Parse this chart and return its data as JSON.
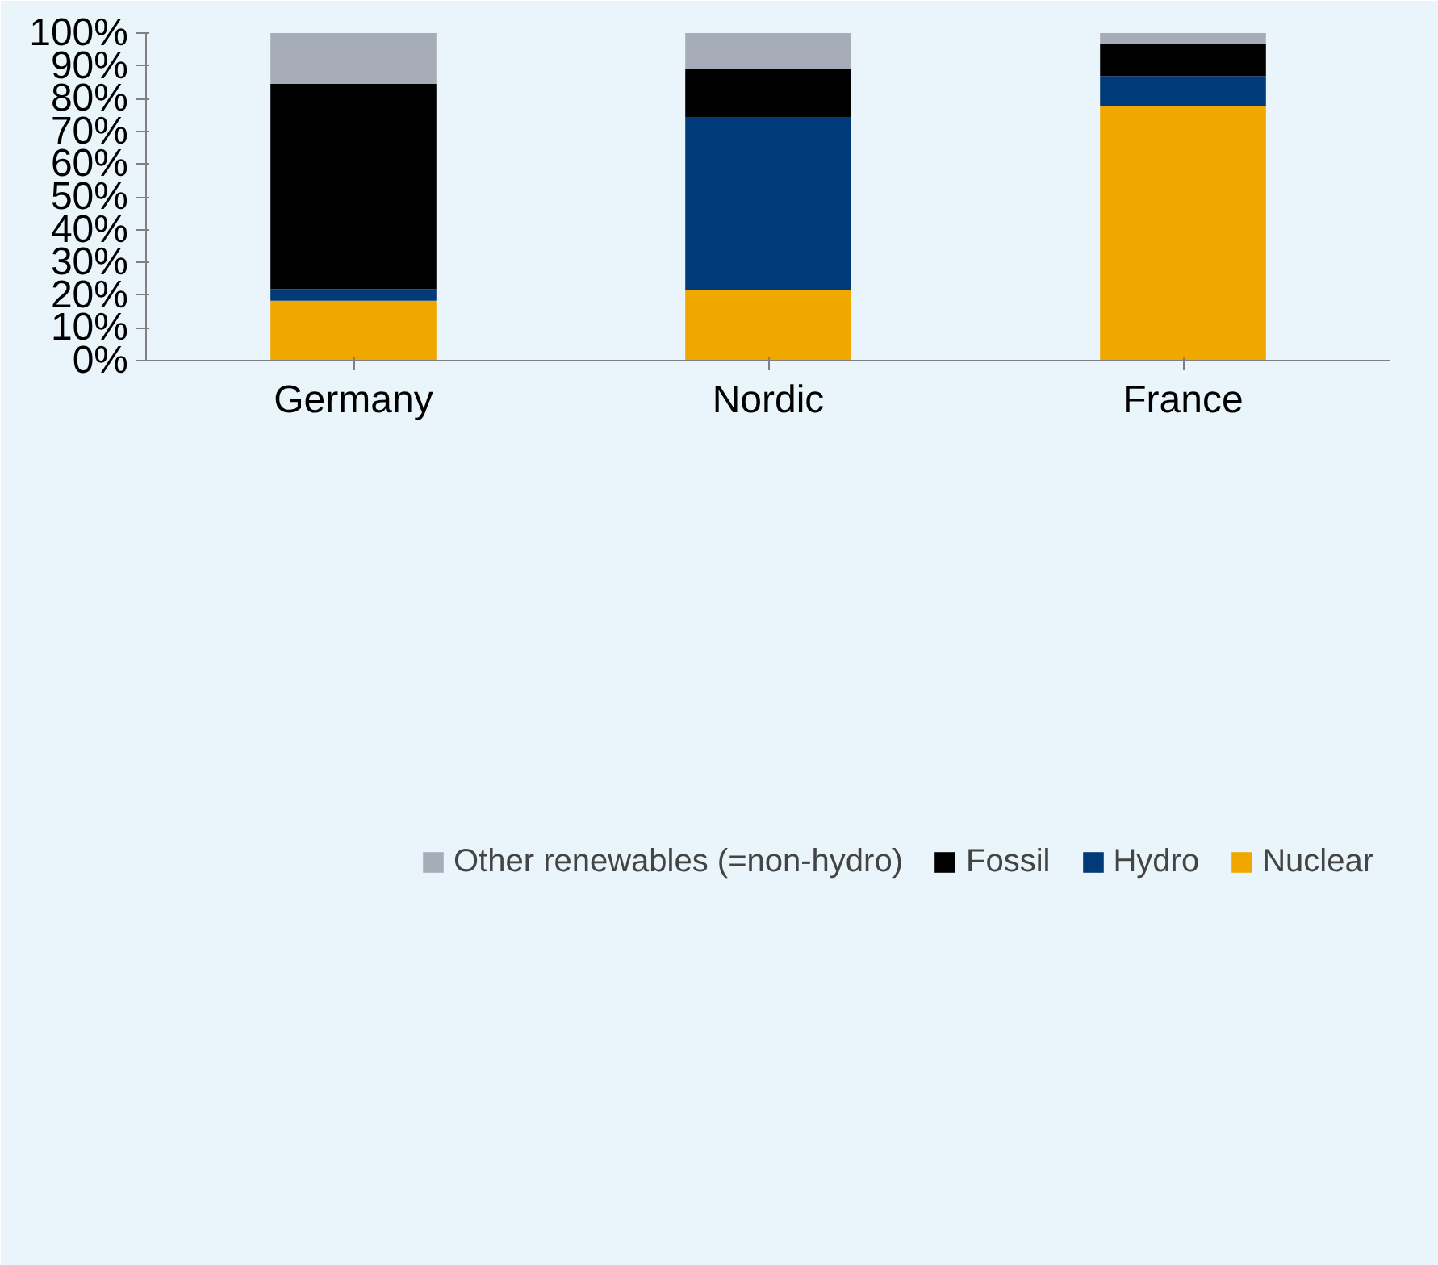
{
  "chart_data": {
    "type": "bar",
    "stacked": true,
    "categories": [
      "Germany",
      "Nordic",
      "France"
    ],
    "series": [
      {
        "name": "Nuclear",
        "color": "#f0a800",
        "values": [
          18.3,
          21.4,
          77.7
        ]
      },
      {
        "name": "Hydro",
        "color": "#003a78",
        "values": [
          3.5,
          52.8,
          9.2
        ]
      },
      {
        "name": "Fossil",
        "color": "#000000",
        "values": [
          62.7,
          14.9,
          9.7
        ]
      },
      {
        "name": "Other renewables (=non-hydro)",
        "color": "#a6acb8",
        "values": [
          15.5,
          10.9,
          3.4
        ]
      }
    ],
    "ylim": [
      0,
      100
    ],
    "yticks": [
      {
        "value": 0,
        "label": "0%"
      },
      {
        "value": 10,
        "label": "10%"
      },
      {
        "value": 20,
        "label": "20%"
      },
      {
        "value": 30,
        "label": "30%"
      },
      {
        "value": 40,
        "label": "40%"
      },
      {
        "value": 50,
        "label": "50%"
      },
      {
        "value": 60,
        "label": "60%"
      },
      {
        "value": 70,
        "label": "70%"
      },
      {
        "value": 80,
        "label": "80%"
      },
      {
        "value": 90,
        "label": "90%"
      },
      {
        "value": 100,
        "label": "100%"
      }
    ],
    "grid": false,
    "legend": "bottom"
  }
}
